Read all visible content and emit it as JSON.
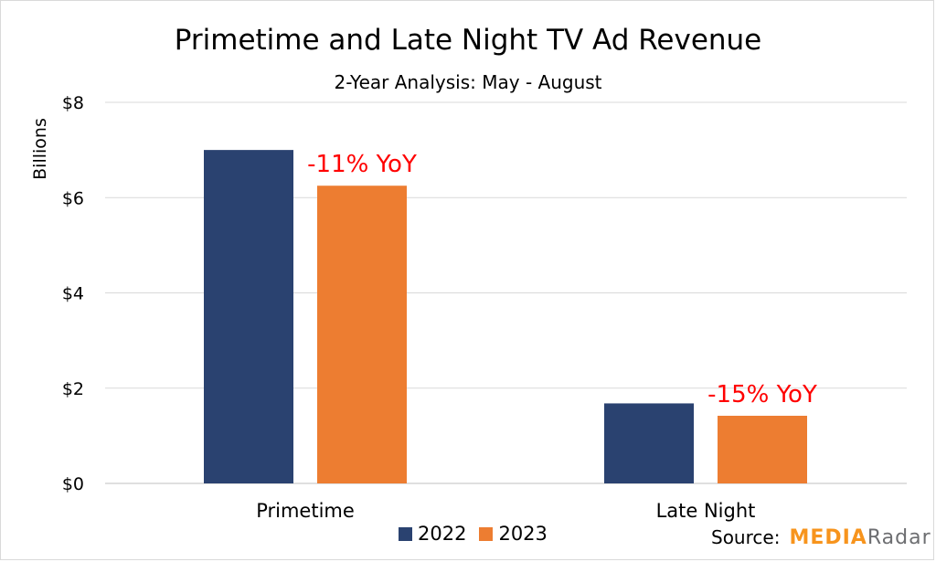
{
  "chart_data": {
    "type": "bar",
    "title": "Primetime and Late Night TV Ad Revenue",
    "subtitle": "2-Year Analysis: May - August",
    "categories": [
      "Primetime",
      "Late Night"
    ],
    "series": [
      {
        "name": "2022",
        "values": [
          7.0,
          1.68
        ],
        "color": "#2a4270"
      },
      {
        "name": "2023",
        "values": [
          6.25,
          1.42
        ],
        "color": "#ed7d31"
      }
    ],
    "ylabel": "Billions",
    "xlabel": "",
    "ylim": [
      0,
      8
    ],
    "yticks": [
      "$0",
      "$2",
      "$4",
      "$6",
      "$8"
    ],
    "ytick_values": [
      0,
      2,
      4,
      6,
      8
    ],
    "grid": true,
    "legend_position": "bottom",
    "annotations": [
      {
        "text": "-11% YoY",
        "category": "Primetime",
        "color": "#ff0000"
      },
      {
        "text": "-15% YoY",
        "category": "Late Night",
        "color": "#ff0000"
      }
    ]
  },
  "source": {
    "label": "Source:",
    "logo_part1": "MEDIA",
    "logo_part2": "Radar"
  }
}
